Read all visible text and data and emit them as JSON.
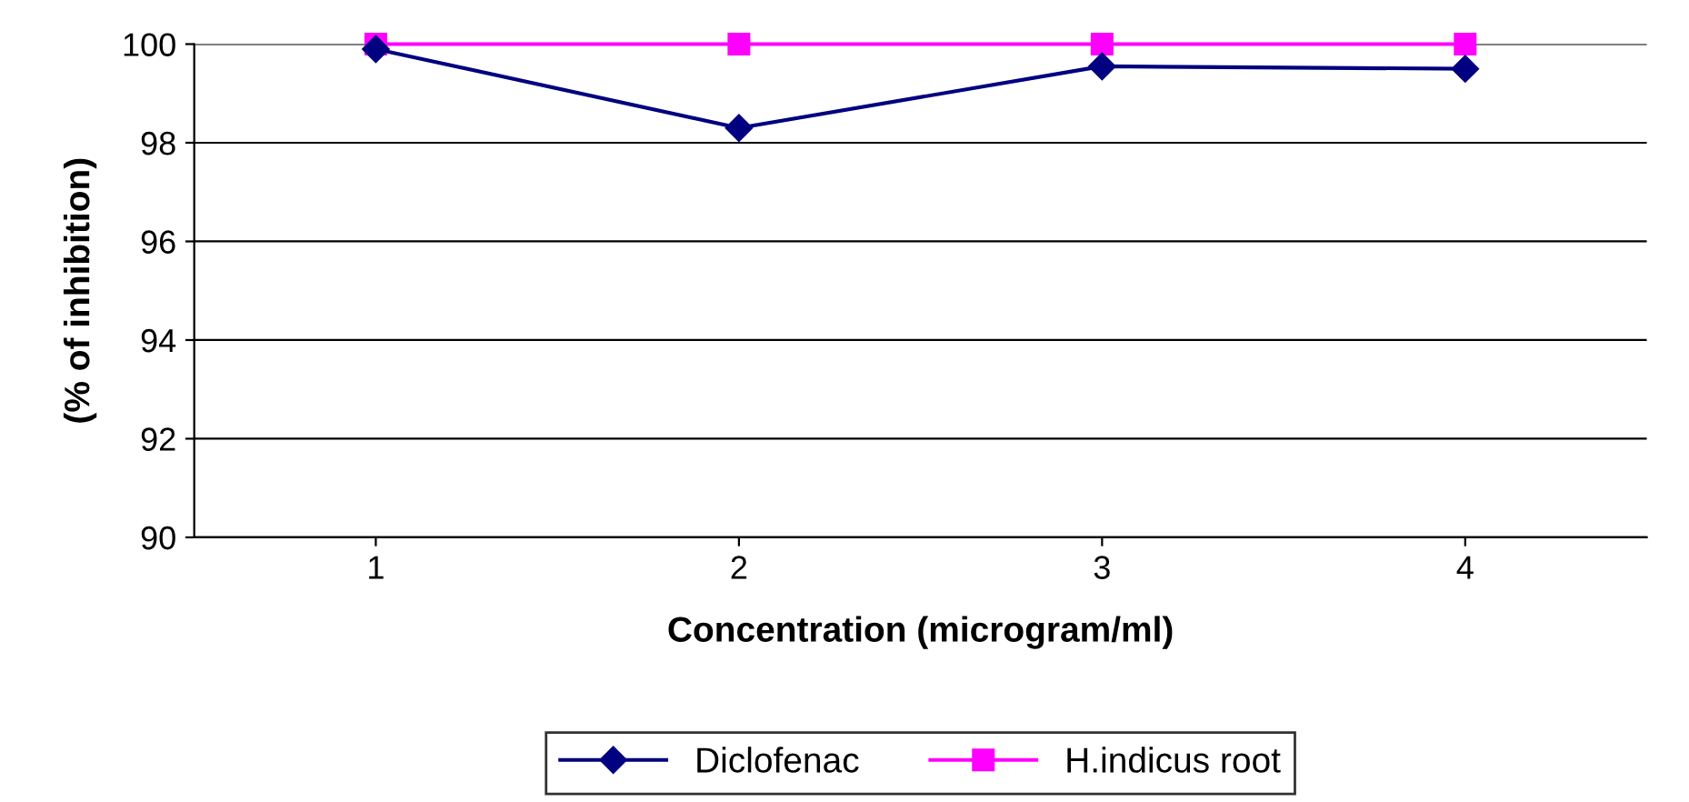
{
  "chart_data": {
    "type": "line",
    "xlabel": "Concentration (microgram/ml)",
    "ylabel": "(% of inhibition)",
    "categories": [
      "1",
      "2",
      "3",
      "4"
    ],
    "series": [
      {
        "name": "Diclofenac",
        "color": "#000080",
        "values": [
          99.9,
          98.3,
          99.55,
          99.5
        ],
        "marker": "diamond"
      },
      {
        "name": "H.indicus root",
        "color": "#ff00ff",
        "values": [
          100,
          100,
          100,
          100
        ],
        "marker": "square"
      }
    ],
    "ylim": [
      90,
      100
    ],
    "yticks": [
      90,
      92,
      94,
      96,
      98,
      100
    ],
    "grid": "y",
    "legend": "bottom",
    "line_style": "solid"
  }
}
